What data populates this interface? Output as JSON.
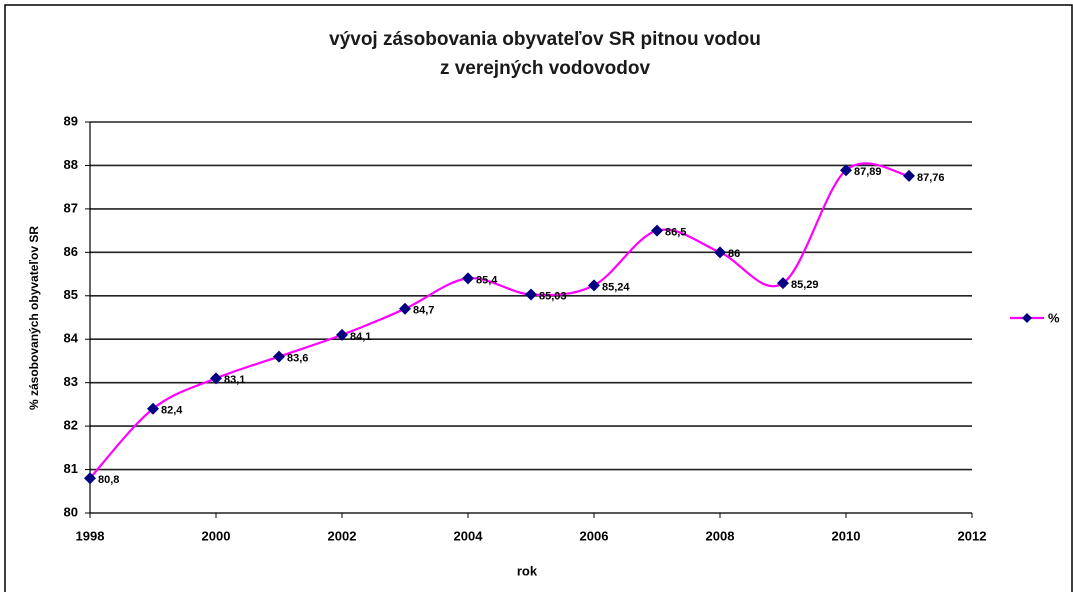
{
  "chart_data": {
    "type": "line",
    "title": [
      "vývoj zásobovania obyvateľov SR pitnou vodou",
      "z verejných vodovodov"
    ],
    "x_label": "rok",
    "y_label": "% zásobovaných obyvateľov SR",
    "x": [
      1998,
      1999,
      2000,
      2001,
      2002,
      2003,
      2004,
      2005,
      2006,
      2007,
      2008,
      2009,
      2010,
      2011
    ],
    "series": [
      {
        "name": "%",
        "color": "#ff00ff",
        "marker_color": "#000080",
        "values": [
          80.8,
          82.4,
          83.1,
          83.6,
          84.1,
          84.7,
          85.4,
          85.03,
          85.24,
          86.5,
          86,
          85.29,
          87.89,
          87.76
        ],
        "value_labels": [
          "80,8",
          "82,4",
          "83,1",
          "83,6",
          "84,1",
          "84,7",
          "85,4",
          "85,03",
          "85,24",
          "86,5",
          "86",
          "85,29",
          "87,89",
          "87,76"
        ]
      }
    ],
    "xlim": [
      1998,
      2012
    ],
    "xticks": [
      1998,
      2000,
      2002,
      2004,
      2006,
      2008,
      2010,
      2012
    ],
    "ylim": [
      80,
      89
    ],
    "yticks": [
      80,
      81,
      82,
      83,
      84,
      85,
      86,
      87,
      88,
      89
    ],
    "grid": true,
    "smooth": true,
    "legend": "right"
  }
}
